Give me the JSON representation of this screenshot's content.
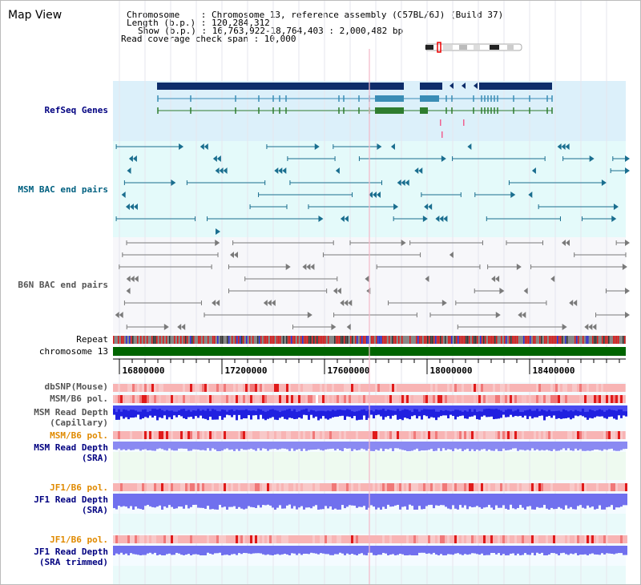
{
  "view_title": "Map View",
  "info": {
    "chromosome": "Chromosome    : Chromosome 13, reference assembly (C57BL/6J) (Build 37)",
    "length": "Length (b.p.) : 120,284,312",
    "show": "Show (b.p.) : 16,763,922-18,764,403 : 2,000,482 bp",
    "coverage": "Read coverage check span : 10,000"
  },
  "tracks": {
    "refseq": "RefSeq Genes",
    "msm_bac": "MSM BAC end pairs",
    "b6n_bac": "B6N BAC end pairs",
    "repeat": "Repeat",
    "chromosome": "chromosome 13",
    "dbsnp": "dbSNP(Mouse)",
    "msm_b6_pol_1": "MSM/B6 pol.",
    "msm_depth_cap": "MSM Read Depth\n(Capillary)",
    "msm_b6_pol_2": "MSM/B6 pol.",
    "msm_depth_sra": "MSM Read Depth\n(SRA)",
    "jf1_b6_pol_1": "JF1/B6 pol.",
    "jf1_depth_sra": "JF1 Read Depth\n(SRA)",
    "jf1_b6_pol_2": "JF1/B6 pol.",
    "jf1_depth_trim": "JF1 Read Depth\n(SRA trimmed)"
  },
  "ruler": {
    "ticks": [
      "16800000",
      "17200000",
      "17600000",
      "18000000",
      "18400000"
    ]
  },
  "colors": {
    "refseq_bg": "#dcf0fa",
    "msm_bg": "#e4fafa",
    "b6n_bg": "#f7f7fa",
    "gene_navy": "#0e2d6a",
    "gene_teal": "#3a8db5",
    "gene_green": "#2f7d2f",
    "msm_pair": "#1a6e8f",
    "b6n_pair": "#7a7a7a",
    "chrom_green": "#006400",
    "snp_red": "#e23030",
    "depth_blue": "#2b2bdf",
    "depth_light": "#7f7ff0",
    "pol_label": "#e08a00",
    "label_navy": "#000080",
    "label_teal": "#006080"
  }
}
